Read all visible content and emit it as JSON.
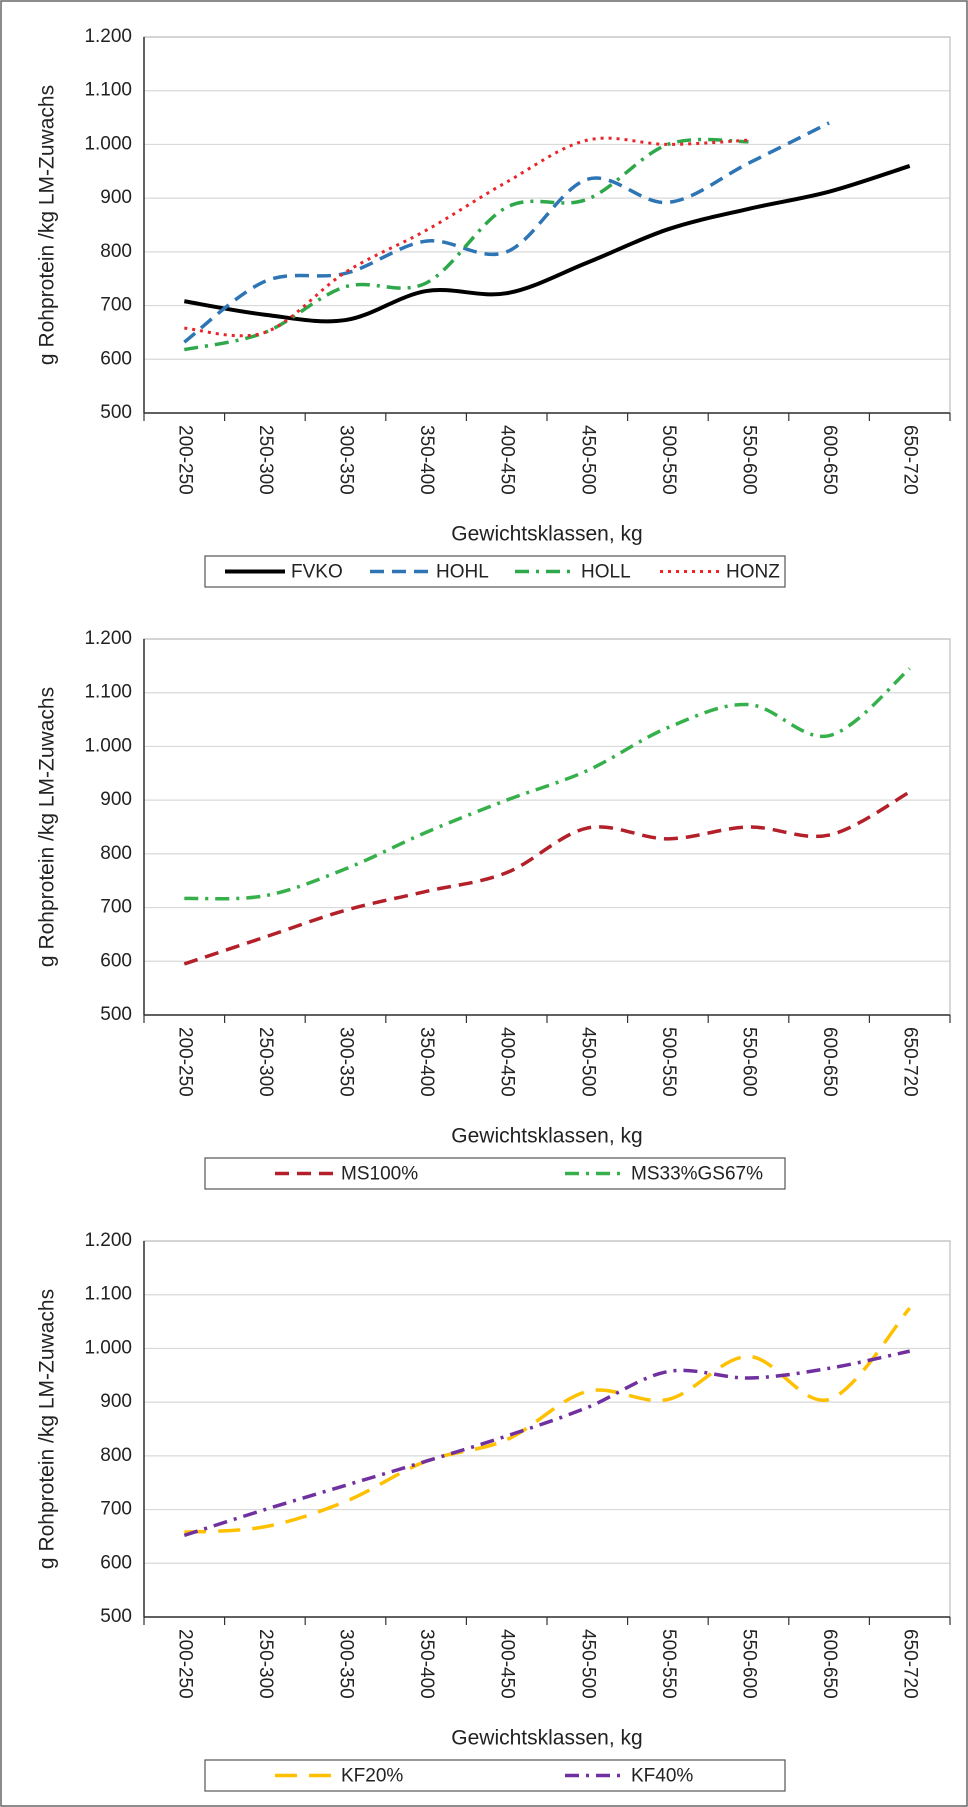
{
  "chart_data": [
    {
      "type": "line",
      "x_label": "Gewichtsklassen, kg",
      "y_label": "g Rohprotein /kg LM-Zuwachs",
      "categories": [
        "200-250",
        "250-300",
        "300-350",
        "350-400",
        "400-450",
        "450-500",
        "500-550",
        "550-600",
        "600-650",
        "650-720"
      ],
      "ylim": [
        500,
        1200
      ],
      "yticks": [
        500,
        600,
        700,
        800,
        900,
        {
          "value": 1000,
          "label": "1.000"
        },
        {
          "value": 1100,
          "label": "1.100"
        },
        {
          "value": 1200,
          "label": "1.200"
        }
      ],
      "grid": true,
      "legend": "bottom",
      "series": [
        {
          "name": "FVKO",
          "color": "#000000",
          "dash": "solid",
          "values": [
            708,
            683,
            673,
            727,
            723,
            780,
            842,
            880,
            912,
            960
          ]
        },
        {
          "name": "HOHL",
          "color": "#2e75b6",
          "dash": "dash",
          "values": [
            632,
            745,
            760,
            820,
            800,
            935,
            892,
            965,
            1040,
            null
          ]
        },
        {
          "name": "HOLL",
          "color": "#2ea84a",
          "dash": "dashdot",
          "values": [
            618,
            650,
            735,
            742,
            883,
            898,
            1000,
            1005,
            null,
            null
          ]
        },
        {
          "name": "HONZ",
          "color": "#e8262a",
          "dash": "dot",
          "values": [
            658,
            650,
            762,
            840,
            930,
            1008,
            1000,
            1008,
            null,
            null
          ]
        }
      ]
    },
    {
      "type": "line",
      "x_label": "Gewichtsklassen, kg",
      "y_label": "g Rohprotein /kg LM-Zuwachs",
      "categories": [
        "200-250",
        "250-300",
        "300-350",
        "350-400",
        "400-450",
        "450-500",
        "500-550",
        "550-600",
        "600-650",
        "650-720"
      ],
      "ylim": [
        500,
        1200
      ],
      "yticks": [
        500,
        600,
        700,
        800,
        900,
        {
          "value": 1000,
          "label": "1.000"
        },
        {
          "value": 1100,
          "label": "1.100"
        },
        {
          "value": 1200,
          "label": "1.200"
        }
      ],
      "grid": true,
      "legend": "bottom",
      "series": [
        {
          "name": "MS100%",
          "color": "#b3202a",
          "dash": "dash",
          "values": [
            595,
            645,
            695,
            730,
            765,
            848,
            828,
            850,
            835,
            915
          ]
        },
        {
          "name": "MS33%GS67%",
          "color": "#35b04a",
          "dash": "dashdot",
          "values": [
            717,
            722,
            772,
            840,
            900,
            955,
            1035,
            1078,
            1020,
            1145
          ]
        }
      ]
    },
    {
      "type": "line",
      "x_label": "Gewichtsklassen, kg",
      "y_label": "g Rohprotein /kg LM-Zuwachs",
      "categories": [
        "200-250",
        "250-300",
        "300-350",
        "350-400",
        "400-450",
        "450-500",
        "500-550",
        "550-600",
        "600-650",
        "650-720"
      ],
      "ylim": [
        500,
        1200
      ],
      "yticks": [
        500,
        600,
        700,
        800,
        900,
        {
          "value": 1000,
          "label": "1.000"
        },
        {
          "value": 1100,
          "label": "1.100"
        },
        {
          "value": 1200,
          "label": "1.200"
        }
      ],
      "grid": true,
      "legend": "bottom",
      "series": [
        {
          "name": "KF20%",
          "color": "#ffc000",
          "dash": "longdash",
          "values": [
            658,
            668,
            715,
            790,
            830,
            920,
            905,
            985,
            905,
            1075
          ]
        },
        {
          "name": "KF40%",
          "color": "#7030a0",
          "dash": "dashdot",
          "values": [
            652,
            700,
            745,
            790,
            837,
            890,
            957,
            945,
            963,
            995
          ]
        }
      ]
    }
  ]
}
